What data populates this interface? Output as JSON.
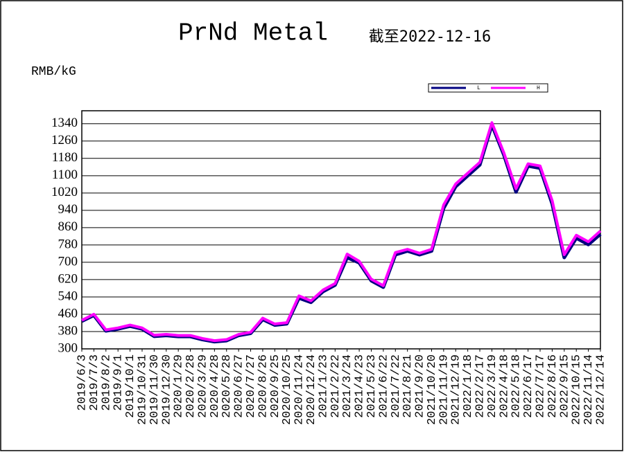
{
  "chart_data": {
    "type": "line",
    "title": "PrNd Metal",
    "subtitle": "截至2022-12-16",
    "y_label": "RMB/kG",
    "categories": [
      "2019/6/3",
      "2019/7/3",
      "2019/8/2",
      "2019/9/1",
      "2019/10/1",
      "2019/10/31",
      "2019/11/30",
      "2019/12/30",
      "2020/1/29",
      "2020/2/28",
      "2020/3/29",
      "2020/4/28",
      "2020/5/28",
      "2020/6/27",
      "2020/7/27",
      "2020/8/26",
      "2020/9/25",
      "2020/10/25",
      "2020/11/24",
      "2020/12/24",
      "2021/1/23",
      "2021/2/22",
      "2021/3/24",
      "2021/4/23",
      "2021/5/23",
      "2021/6/22",
      "2021/7/22",
      "2021/8/21",
      "2021/9/20",
      "2021/10/20",
      "2021/11/19",
      "2021/12/19",
      "2022/1/18",
      "2022/2/17",
      "2022/3/19",
      "2022/4/18",
      "2022/5/18",
      "2022/6/17",
      "2022/7/17",
      "2022/8/16",
      "2022/9/15",
      "2022/10/15",
      "2022/11/14",
      "2022/12/14"
    ],
    "series": [
      {
        "name": "L",
        "color": "#000080",
        "values": [
          428,
          455,
          383,
          392,
          405,
          392,
          358,
          362,
          357,
          357,
          343,
          333,
          338,
          362,
          372,
          436,
          410,
          416,
          535,
          515,
          565,
          595,
          722,
          698,
          615,
          585,
          735,
          752,
          735,
          752,
          950,
          1050,
          1100,
          1150,
          1335,
          1195,
          1025,
          1145,
          1135,
          970,
          722,
          812,
          782,
          830
        ]
      },
      {
        "name": "H",
        "color": "#ff00ff",
        "values": [
          432,
          460,
          388,
          397,
          410,
          397,
          363,
          367,
          362,
          362,
          348,
          338,
          343,
          367,
          377,
          442,
          415,
          421,
          545,
          522,
          572,
          602,
          738,
          705,
          622,
          592,
          745,
          760,
          742,
          760,
          965,
          1062,
          1112,
          1162,
          1345,
          1205,
          1040,
          1155,
          1145,
          985,
          735,
          825,
          795,
          845
        ]
      }
    ],
    "ylim": [
      300,
      1400
    ],
    "yticks": [
      300,
      380,
      460,
      540,
      620,
      700,
      780,
      860,
      940,
      1020,
      1100,
      1180,
      1260,
      1340
    ],
    "grid": true,
    "legend": "top-right"
  }
}
